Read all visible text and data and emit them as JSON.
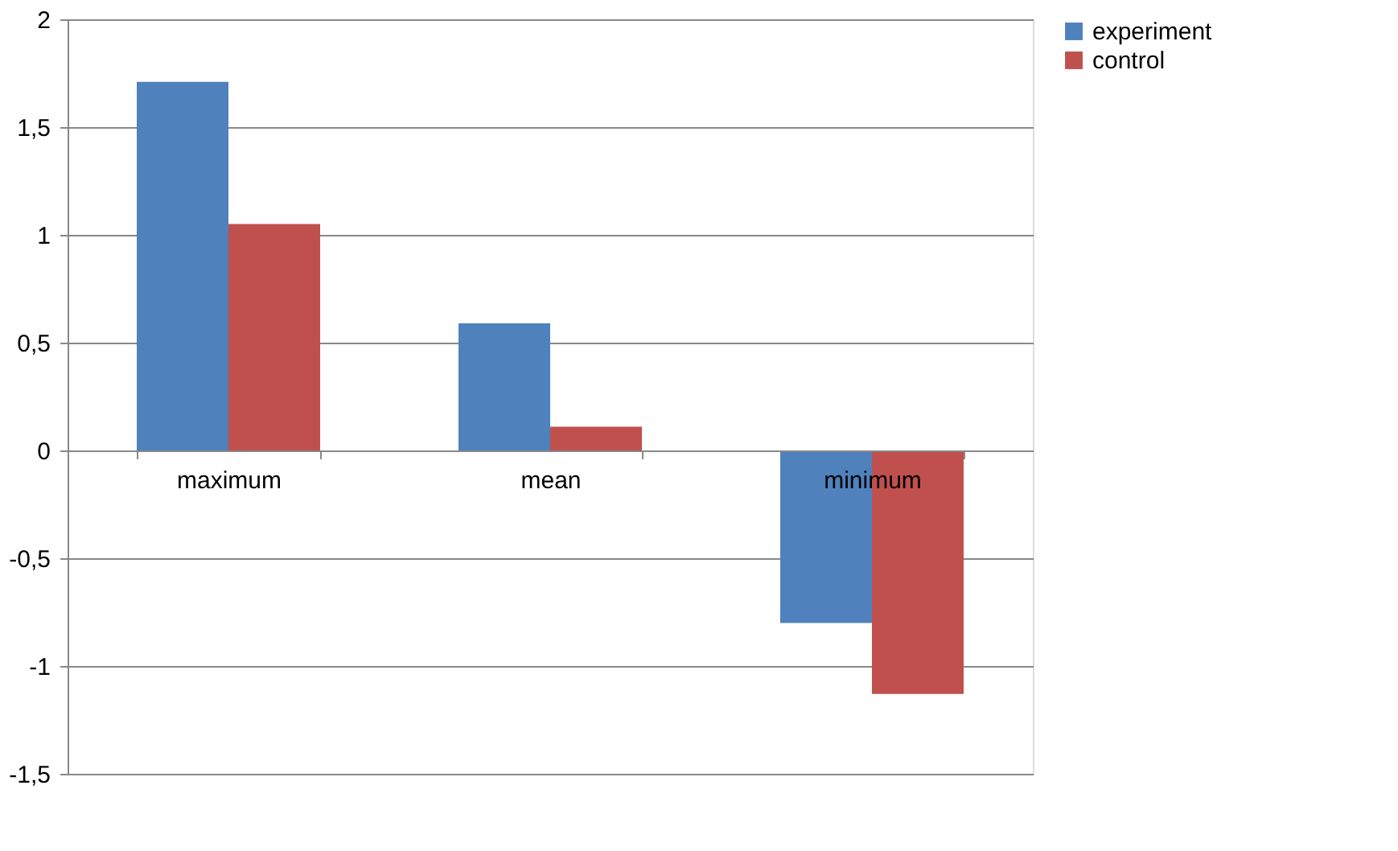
{
  "chart_data": {
    "type": "bar",
    "categories": [
      "maximum",
      "mean",
      "minimum"
    ],
    "series": [
      {
        "name": "experiment",
        "color": "#4f81bd",
        "values": [
          1.71,
          0.59,
          -0.8
        ]
      },
      {
        "name": "control",
        "color": "#c0504d",
        "values": [
          1.05,
          0.11,
          -1.13
        ]
      }
    ],
    "ylim": [
      -1.5,
      2
    ],
    "yticks": [
      {
        "value": -1.5,
        "label": "-1,5"
      },
      -1,
      {
        "value": -0.5,
        "label": "-0,5"
      },
      0,
      {
        "value": 0.5,
        "label": "0,5"
      },
      1,
      {
        "value": 1.5,
        "label": "1,5"
      },
      2
    ],
    "grid": "y",
    "legend": "right"
  }
}
